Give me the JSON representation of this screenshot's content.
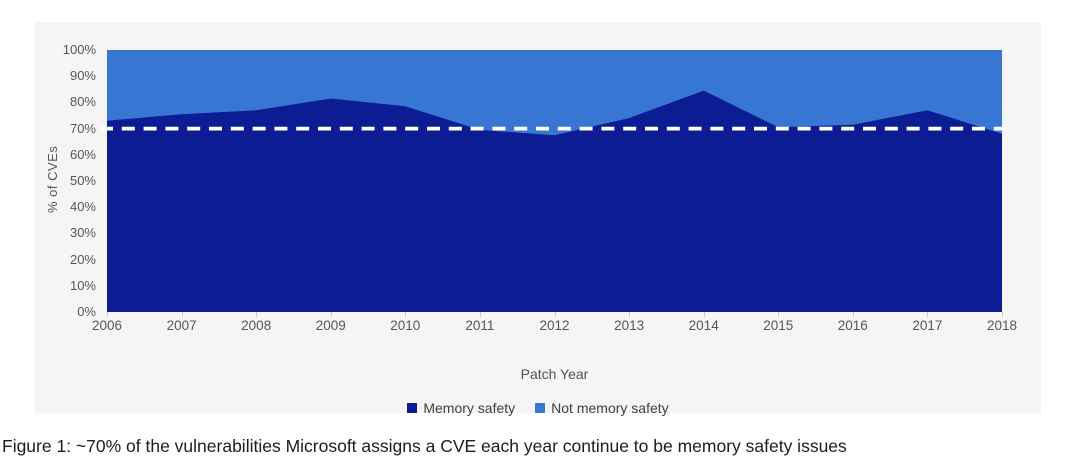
{
  "caption": "Figure 1: ~70% of the vulnerabilities Microsoft assigns a CVE each year continue to be memory safety issues",
  "chart_data": {
    "type": "area",
    "stacked": true,
    "x": [
      "2006",
      "2007",
      "2008",
      "2009",
      "2010",
      "2011",
      "2012",
      "2013",
      "2014",
      "2015",
      "2016",
      "2017",
      "2018"
    ],
    "xlabel": "Patch Year",
    "ylabel": "% of CVEs",
    "ylim": [
      0,
      100
    ],
    "y_tick_labels": [
      "0%",
      "10%",
      "20%",
      "30%",
      "40%",
      "50%",
      "60%",
      "70%",
      "80%",
      "90%",
      "100%"
    ],
    "grid": false,
    "legend_position": "bottom",
    "series": [
      {
        "name": "Memory safety",
        "color": "#0C1C93",
        "values": [
          73,
          75.5,
          77,
          81.5,
          78.5,
          69.5,
          67.5,
          74,
          84.5,
          70.5,
          71.5,
          77,
          68
        ]
      },
      {
        "name": "Not memory safety",
        "color": "#3876D3",
        "values": [
          27,
          24.5,
          23,
          18.5,
          21.5,
          30.5,
          32.5,
          26,
          15.5,
          29.5,
          28.5,
          23,
          32
        ]
      }
    ],
    "reference_line": {
      "value": 70,
      "color": "#FFFFFF",
      "style": "dashed"
    },
    "colors": {
      "card_background": "#F5F5F5",
      "axis_text": "#565656"
    }
  }
}
